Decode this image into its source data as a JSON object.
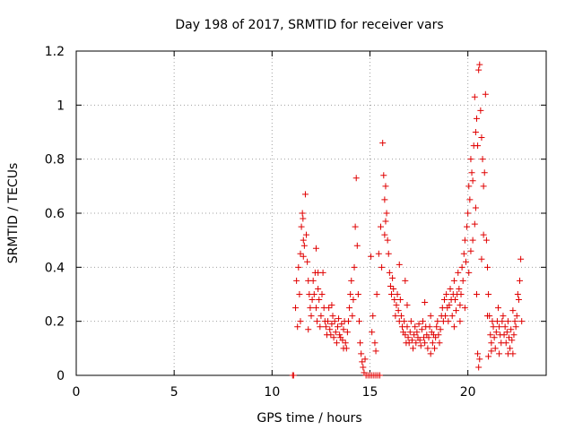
{
  "chart_data": {
    "type": "scatter",
    "title": "Day 198 of 2017, SRMTID for receiver vars",
    "xlabel": "GPS time / hours",
    "ylabel": "SRMTID / TECUs",
    "xlim": [
      0,
      24
    ],
    "ylim": [
      0,
      1.2
    ],
    "xticks": [
      0,
      5,
      10,
      15,
      20
    ],
    "xtick_labels": [
      "0",
      "5",
      "10",
      "15",
      "20"
    ],
    "yticks": [
      0,
      0.2,
      0.4,
      0.6,
      0.8,
      1.0,
      1.2
    ],
    "ytick_labels": [
      "0",
      "0.2",
      "0.4",
      "0.6",
      "0.8",
      "1",
      "1.2"
    ],
    "grid": true,
    "marker": "+",
    "color": "#e00000",
    "series": [
      {
        "name": "SRMTID",
        "points": [
          [
            11.05,
            0.0
          ],
          [
            11.1,
            0.0
          ],
          [
            11.2,
            0.25
          ],
          [
            11.25,
            0.35
          ],
          [
            11.3,
            0.18
          ],
          [
            11.35,
            0.4
          ],
          [
            11.4,
            0.3
          ],
          [
            11.45,
            0.45
          ],
          [
            11.5,
            0.55
          ],
          [
            11.55,
            0.6
          ],
          [
            11.6,
            0.5
          ],
          [
            11.65,
            0.48
          ],
          [
            11.7,
            0.67
          ],
          [
            11.75,
            0.52
          ],
          [
            11.8,
            0.42
          ],
          [
            11.85,
            0.35
          ],
          [
            11.9,
            0.3
          ],
          [
            11.95,
            0.25
          ],
          [
            12.0,
            0.22
          ],
          [
            12.05,
            0.28
          ],
          [
            12.1,
            0.35
          ],
          [
            12.15,
            0.3
          ],
          [
            12.2,
            0.38
          ],
          [
            12.25,
            0.25
          ],
          [
            12.3,
            0.2
          ],
          [
            12.35,
            0.32
          ],
          [
            12.4,
            0.28
          ],
          [
            12.45,
            0.18
          ],
          [
            12.5,
            0.22
          ],
          [
            12.55,
            0.3
          ],
          [
            12.6,
            0.38
          ],
          [
            12.65,
            0.25
          ],
          [
            12.7,
            0.2
          ],
          [
            12.75,
            0.18
          ],
          [
            12.8,
            0.15
          ],
          [
            12.85,
            0.2
          ],
          [
            12.9,
            0.25
          ],
          [
            12.95,
            0.17
          ],
          [
            13.0,
            0.15
          ],
          [
            13.05,
            0.19
          ],
          [
            13.1,
            0.22
          ],
          [
            13.15,
            0.14
          ],
          [
            13.2,
            0.2
          ],
          [
            13.25,
            0.16
          ],
          [
            13.3,
            0.12
          ],
          [
            13.35,
            0.18
          ],
          [
            13.4,
            0.21
          ],
          [
            13.45,
            0.15
          ],
          [
            13.5,
            0.14
          ],
          [
            13.55,
            0.19
          ],
          [
            13.6,
            0.13
          ],
          [
            13.65,
            0.17
          ],
          [
            13.7,
            0.2
          ],
          [
            13.75,
            0.12
          ],
          [
            13.8,
            0.1
          ],
          [
            13.85,
            0.16
          ],
          [
            13.9,
            0.2
          ],
          [
            13.95,
            0.25
          ],
          [
            14.0,
            0.3
          ],
          [
            14.05,
            0.35
          ],
          [
            14.1,
            0.22
          ],
          [
            14.15,
            0.28
          ],
          [
            14.2,
            0.4
          ],
          [
            14.25,
            0.55
          ],
          [
            14.3,
            0.73
          ],
          [
            14.35,
            0.48
          ],
          [
            14.4,
            0.3
          ],
          [
            14.45,
            0.2
          ],
          [
            14.5,
            0.12
          ],
          [
            14.55,
            0.08
          ],
          [
            14.6,
            0.05
          ],
          [
            14.65,
            0.03
          ],
          [
            14.7,
            0.01
          ],
          [
            14.8,
            0.0
          ],
          [
            14.9,
            0.0
          ],
          [
            15.0,
            0.0
          ],
          [
            15.1,
            0.0
          ],
          [
            15.2,
            0.0
          ],
          [
            15.3,
            0.0
          ],
          [
            15.4,
            0.0
          ],
          [
            15.5,
            0.0
          ],
          [
            15.35,
            0.3
          ],
          [
            15.45,
            0.45
          ],
          [
            15.55,
            0.55
          ],
          [
            15.6,
            0.4
          ],
          [
            15.65,
            0.86
          ],
          [
            15.7,
            0.74
          ],
          [
            15.75,
            0.65
          ],
          [
            15.8,
            0.7
          ],
          [
            15.85,
            0.6
          ],
          [
            15.9,
            0.5
          ],
          [
            15.95,
            0.45
          ],
          [
            16.0,
            0.38
          ],
          [
            16.05,
            0.33
          ],
          [
            16.1,
            0.3
          ],
          [
            16.15,
            0.36
          ],
          [
            16.2,
            0.32
          ],
          [
            16.25,
            0.28
          ],
          [
            16.3,
            0.22
          ],
          [
            16.35,
            0.26
          ],
          [
            16.4,
            0.3
          ],
          [
            16.45,
            0.24
          ],
          [
            16.5,
            0.2
          ],
          [
            16.55,
            0.28
          ],
          [
            16.6,
            0.22
          ],
          [
            16.65,
            0.18
          ],
          [
            16.7,
            0.16
          ],
          [
            16.75,
            0.2
          ],
          [
            16.8,
            0.15
          ],
          [
            16.85,
            0.12
          ],
          [
            16.9,
            0.18
          ],
          [
            16.95,
            0.14
          ],
          [
            17.0,
            0.12
          ],
          [
            17.05,
            0.16
          ],
          [
            17.1,
            0.2
          ],
          [
            17.15,
            0.13
          ],
          [
            17.2,
            0.1
          ],
          [
            17.25,
            0.15
          ],
          [
            17.3,
            0.18
          ],
          [
            17.35,
            0.12
          ],
          [
            17.4,
            0.16
          ],
          [
            17.45,
            0.14
          ],
          [
            17.5,
            0.19
          ],
          [
            17.55,
            0.13
          ],
          [
            17.6,
            0.11
          ],
          [
            17.65,
            0.17
          ],
          [
            17.7,
            0.2
          ],
          [
            17.75,
            0.14
          ],
          [
            17.8,
            0.12
          ],
          [
            17.85,
            0.18
          ],
          [
            17.9,
            0.15
          ],
          [
            17.95,
            0.1
          ],
          [
            18.0,
            0.14
          ],
          [
            18.05,
            0.18
          ],
          [
            18.1,
            0.22
          ],
          [
            18.15,
            0.16
          ],
          [
            18.2,
            0.12
          ],
          [
            18.25,
            0.15
          ],
          [
            18.3,
            0.1
          ],
          [
            18.35,
            0.14
          ],
          [
            18.4,
            0.18
          ],
          [
            18.45,
            0.2
          ],
          [
            18.5,
            0.15
          ],
          [
            18.55,
            0.12
          ],
          [
            18.6,
            0.17
          ],
          [
            18.65,
            0.22
          ],
          [
            18.7,
            0.25
          ],
          [
            18.75,
            0.2
          ],
          [
            18.8,
            0.28
          ],
          [
            18.85,
            0.22
          ],
          [
            18.9,
            0.3
          ],
          [
            18.95,
            0.25
          ],
          [
            19.0,
            0.2
          ],
          [
            19.05,
            0.26
          ],
          [
            19.1,
            0.32
          ],
          [
            19.15,
            0.28
          ],
          [
            19.2,
            0.22
          ],
          [
            19.25,
            0.3
          ],
          [
            19.3,
            0.35
          ],
          [
            19.35,
            0.28
          ],
          [
            19.4,
            0.24
          ],
          [
            19.45,
            0.3
          ],
          [
            19.5,
            0.38
          ],
          [
            19.55,
            0.32
          ],
          [
            19.6,
            0.26
          ],
          [
            19.65,
            0.3
          ],
          [
            19.7,
            0.4
          ],
          [
            19.75,
            0.35
          ],
          [
            19.8,
            0.45
          ],
          [
            19.85,
            0.5
          ],
          [
            19.9,
            0.42
          ],
          [
            19.95,
            0.55
          ],
          [
            20.0,
            0.6
          ],
          [
            20.05,
            0.7
          ],
          [
            20.1,
            0.65
          ],
          [
            20.15,
            0.8
          ],
          [
            20.2,
            0.75
          ],
          [
            20.25,
            0.72
          ],
          [
            20.3,
            0.85
          ],
          [
            20.35,
            1.03
          ],
          [
            20.4,
            0.9
          ],
          [
            20.45,
            0.95
          ],
          [
            20.5,
            0.85
          ],
          [
            20.55,
            1.13
          ],
          [
            20.6,
            1.15
          ],
          [
            20.65,
            0.98
          ],
          [
            20.7,
            0.88
          ],
          [
            20.75,
            0.8
          ],
          [
            20.8,
            0.7
          ],
          [
            20.85,
            0.75
          ],
          [
            20.9,
            1.04
          ],
          [
            20.95,
            0.5
          ],
          [
            21.0,
            0.4
          ],
          [
            21.05,
            0.3
          ],
          [
            21.1,
            0.22
          ],
          [
            21.15,
            0.15
          ],
          [
            21.2,
            0.12
          ],
          [
            21.25,
            0.2
          ],
          [
            21.3,
            0.18
          ],
          [
            21.35,
            0.14
          ],
          [
            21.4,
            0.1
          ],
          [
            21.45,
            0.16
          ],
          [
            21.5,
            0.2
          ],
          [
            21.55,
            0.25
          ],
          [
            21.6,
            0.18
          ],
          [
            21.65,
            0.15
          ],
          [
            21.7,
            0.12
          ],
          [
            21.75,
            0.2
          ],
          [
            21.8,
            0.22
          ],
          [
            21.85,
            0.15
          ],
          [
            21.9,
            0.18
          ],
          [
            21.95,
            0.12
          ],
          [
            22.0,
            0.16
          ],
          [
            22.05,
            0.2
          ],
          [
            22.1,
            0.14
          ],
          [
            22.15,
            0.1
          ],
          [
            22.2,
            0.17
          ],
          [
            22.25,
            0.13
          ],
          [
            22.3,
            0.08
          ],
          [
            22.35,
            0.15
          ],
          [
            22.4,
            0.2
          ],
          [
            22.45,
            0.18
          ],
          [
            22.5,
            0.22
          ],
          [
            22.55,
            0.3
          ],
          [
            22.6,
            0.28
          ],
          [
            22.65,
            0.35
          ],
          [
            22.7,
            0.43
          ],
          [
            22.75,
            0.2
          ],
          [
            20.55,
            0.03
          ],
          [
            20.6,
            0.06
          ],
          [
            20.5,
            0.08
          ],
          [
            21.05,
            0.07
          ],
          [
            21.2,
            0.09
          ],
          [
            22.05,
            0.08
          ],
          [
            12.25,
            0.47
          ],
          [
            12.35,
            0.38
          ],
          [
            11.58,
            0.58
          ],
          [
            11.6,
            0.44
          ],
          [
            16.5,
            0.41
          ],
          [
            15.05,
            0.44
          ],
          [
            15.1,
            0.16
          ],
          [
            15.15,
            0.22
          ],
          [
            15.25,
            0.12
          ],
          [
            15.3,
            0.09
          ],
          [
            17.8,
            0.27
          ],
          [
            18.1,
            0.08
          ],
          [
            19.3,
            0.18
          ],
          [
            20.25,
            0.5
          ],
          [
            20.4,
            0.62
          ],
          [
            20.45,
            0.3
          ],
          [
            21.6,
            0.08
          ],
          [
            22.3,
            0.24
          ],
          [
            13.05,
            0.26
          ],
          [
            13.65,
            0.1
          ],
          [
            14.75,
            0.06
          ],
          [
            16.8,
            0.35
          ],
          [
            16.9,
            0.26
          ],
          [
            15.75,
            0.52
          ],
          [
            15.8,
            0.57
          ],
          [
            19.6,
            0.2
          ],
          [
            19.85,
            0.25
          ],
          [
            20.05,
            0.38
          ],
          [
            20.15,
            0.46
          ],
          [
            20.35,
            0.56
          ],
          [
            20.7,
            0.43
          ],
          [
            20.8,
            0.52
          ],
          [
            21.0,
            0.22
          ],
          [
            11.45,
            0.2
          ],
          [
            11.85,
            0.17
          ]
        ]
      }
    ]
  }
}
